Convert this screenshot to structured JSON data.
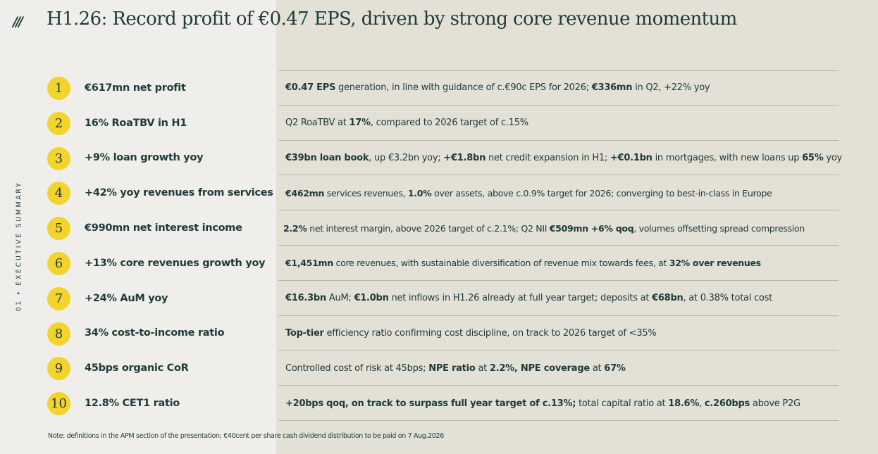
{
  "logo": "///",
  "title": "H1.26: Record profit of €0.47 EPS, driven by strong core revenue momentum",
  "side_label": "01 • EXECUTIVE SUMMARY",
  "colors": {
    "accent": "#f2d42c",
    "text": "#1f3a3a",
    "panel": "#e3e0d6",
    "background": "#f0eeea"
  },
  "items": [
    {
      "number": "1",
      "headline": "€617mn net profit",
      "detail": [
        [
          "€0.47 EPS",
          true
        ],
        [
          " generation, in line with guidance of c.€90c EPS for 2026; ",
          false
        ],
        [
          "€336mn",
          true
        ],
        [
          " in Q2, +22% yoy",
          false
        ]
      ]
    },
    {
      "number": "2",
      "headline": "16% RoaTBV in H1",
      "detail": [
        [
          "Q2 RoaTBV at ",
          false
        ],
        [
          "17%",
          true
        ],
        [
          ", compared to 2026 target of c.15%",
          false
        ]
      ]
    },
    {
      "number": "3",
      "headline": "+9% loan growth yoy",
      "detail": [
        [
          "€39bn loan book",
          true
        ],
        [
          ", up €3.2bn yoy; ",
          false
        ],
        [
          "+€1.8bn",
          true
        ],
        [
          " net credit expansion in H1; ",
          false
        ],
        [
          "+€0.1bn",
          true
        ],
        [
          " in mortgages, with new loans up ",
          false
        ],
        [
          "65%",
          true
        ],
        [
          " yoy",
          false
        ]
      ]
    },
    {
      "number": "4",
      "headline": "+42% yoy revenues from services",
      "detail": [
        [
          "€462mn",
          true
        ],
        [
          " services revenues, ",
          false
        ],
        [
          "1.0%",
          true
        ],
        [
          " over assets, above c.0.9% target for 2026; converging to best-in-class in Europe",
          false
        ]
      ]
    },
    {
      "number": "5",
      "headline": "€990mn net interest income",
      "detail": [
        [
          "2.2%",
          true
        ],
        [
          " net interest margin, above 2026 target of c.2.1%; Q2 NII ",
          false
        ],
        [
          "€509mn +6% qoq",
          true
        ],
        [
          ", volumes offsetting spread compression",
          false
        ]
      ]
    },
    {
      "number": "6",
      "headline": "+13% core revenues growth yoy",
      "detail": [
        [
          "€1,451mn",
          true
        ],
        [
          " core revenues, with sustainable diversification of revenue mix towards fees, at ",
          false
        ],
        [
          "32% over revenues",
          true
        ]
      ]
    },
    {
      "number": "7",
      "headline": "+24% AuM yoy",
      "detail": [
        [
          "€16.3bn",
          true
        ],
        [
          " AuM; ",
          false
        ],
        [
          "€1.0bn",
          true
        ],
        [
          " net inflows in H1.26 already at full year target; deposits at ",
          false
        ],
        [
          "€68bn",
          true
        ],
        [
          ", at 0.38% total cost",
          false
        ]
      ]
    },
    {
      "number": "8",
      "headline": "34% cost-to-income ratio",
      "detail": [
        [
          "Top-tier",
          true
        ],
        [
          " efficiency ratio confirming cost discipline, on track to 2026 target of <35%",
          false
        ]
      ]
    },
    {
      "number": "9",
      "headline": "45bps organic CoR",
      "detail": [
        [
          "Controlled",
          false
        ],
        [
          " cost of risk at 45bps; ",
          false
        ],
        [
          "NPE ratio",
          true
        ],
        [
          " at ",
          false
        ],
        [
          "2.2%, NPE coverage",
          true
        ],
        [
          " at ",
          false
        ],
        [
          "67%",
          true
        ]
      ]
    },
    {
      "number": "10",
      "headline": "12.8% CET1 ratio",
      "detail": [
        [
          "+20bps qoq, on track to surpass full year target of c.13%;",
          true
        ],
        [
          " total capital ratio at ",
          false
        ],
        [
          "18.6%",
          true
        ],
        [
          ", ",
          false
        ],
        [
          "c.260bps",
          true
        ],
        [
          " above P2G",
          false
        ]
      ]
    }
  ],
  "note": "Note: definitions in the APM section of the presentation; €40cent per share cash dividend distribution to be paid on 7 Aug.2026"
}
